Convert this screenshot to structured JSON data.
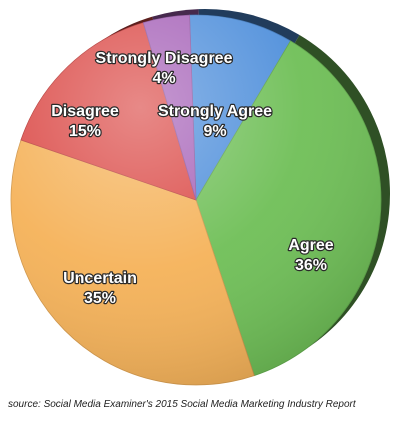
{
  "chart_data": {
    "type": "pie",
    "categories": [
      "Strongly Agree",
      "Agree",
      "Uncertain",
      "Disagree",
      "Strongly Disagree"
    ],
    "values": [
      9,
      36,
      35,
      15,
      4
    ],
    "labels": [
      "9%",
      "36%",
      "35%",
      "15%",
      "4%"
    ],
    "colors": [
      "#4f8fdb",
      "#6fbf57",
      "#f5b259",
      "#db4a47",
      "#a662b8"
    ],
    "style": "3d-tilted",
    "source": "source: Social Media Examiner's 2015 Social Media Marketing Industry Report"
  }
}
